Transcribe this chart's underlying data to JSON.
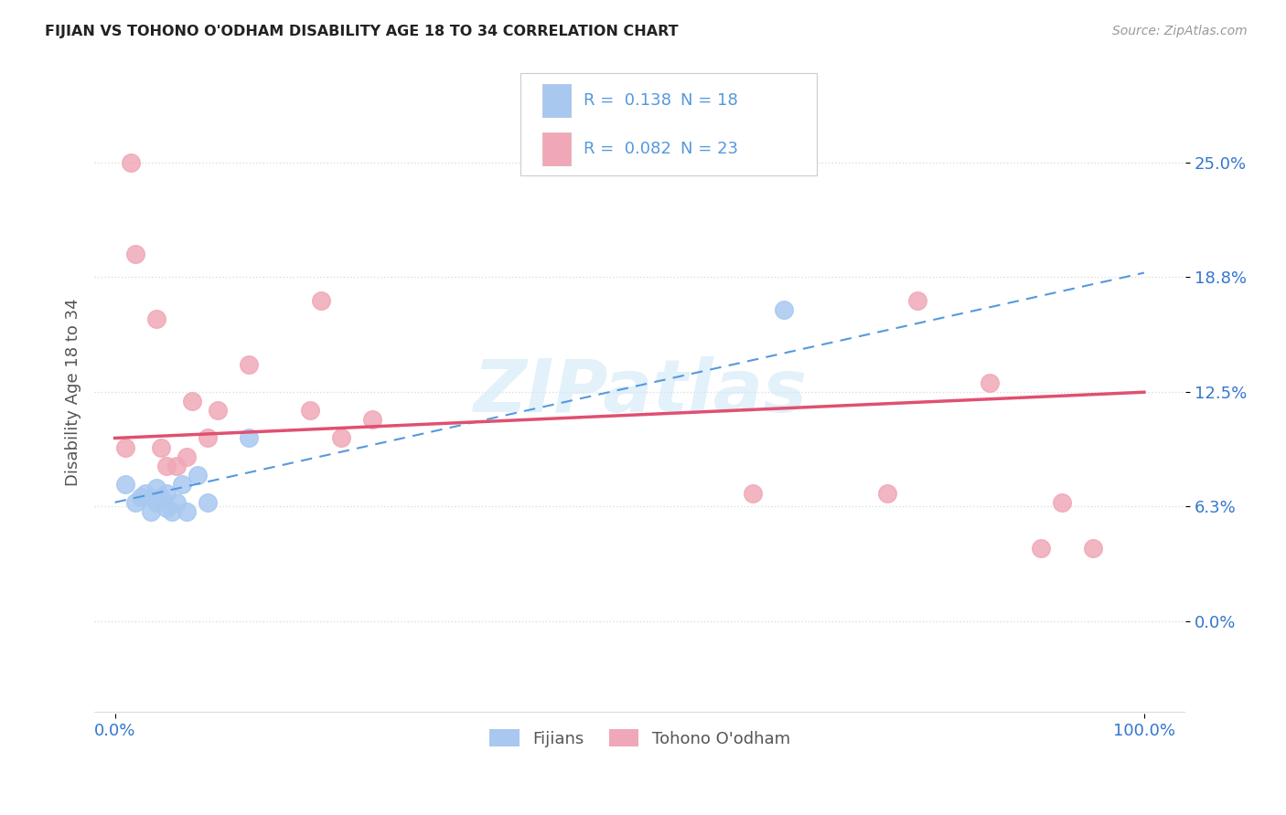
{
  "title": "FIJIAN VS TOHONO O'ODHAM DISABILITY AGE 18 TO 34 CORRELATION CHART",
  "source": "Source: ZipAtlas.com",
  "ylabel": "Disability Age 18 to 34",
  "xlabel": "",
  "xlim": [
    -0.02,
    1.04
  ],
  "ylim": [
    -0.05,
    0.3
  ],
  "yticks": [
    0.0,
    0.063,
    0.125,
    0.188,
    0.25
  ],
  "ytick_labels": [
    "0.0%",
    "6.3%",
    "12.5%",
    "18.8%",
    "25.0%"
  ],
  "xticks": [
    0.0,
    1.0
  ],
  "xtick_labels": [
    "0.0%",
    "100.0%"
  ],
  "fijian_R": 0.138,
  "fijian_N": 18,
  "tohono_R": 0.082,
  "tohono_N": 23,
  "fijian_color": "#a8c8f0",
  "tohono_color": "#f0a8b8",
  "fijian_line_color": "#5599dd",
  "tohono_line_color": "#e05070",
  "watermark_color": "#d0e8f8",
  "fijian_x": [
    0.01,
    0.02,
    0.025,
    0.03,
    0.035,
    0.04,
    0.04,
    0.045,
    0.05,
    0.05,
    0.055,
    0.06,
    0.065,
    0.07,
    0.08,
    0.09,
    0.13,
    0.65
  ],
  "fijian_y": [
    0.075,
    0.065,
    0.068,
    0.07,
    0.06,
    0.065,
    0.073,
    0.068,
    0.062,
    0.07,
    0.06,
    0.065,
    0.075,
    0.06,
    0.08,
    0.065,
    0.1,
    0.17
  ],
  "tohono_x": [
    0.01,
    0.015,
    0.02,
    0.04,
    0.045,
    0.05,
    0.06,
    0.07,
    0.075,
    0.09,
    0.1,
    0.13,
    0.19,
    0.2,
    0.22,
    0.25,
    0.62,
    0.75,
    0.78,
    0.85,
    0.9,
    0.92,
    0.95
  ],
  "tohono_y": [
    0.095,
    0.25,
    0.2,
    0.165,
    0.095,
    0.085,
    0.085,
    0.09,
    0.12,
    0.1,
    0.115,
    0.14,
    0.115,
    0.175,
    0.1,
    0.11,
    0.07,
    0.07,
    0.175,
    0.13,
    0.04,
    0.065,
    0.04
  ],
  "fijian_line_x0": 0.0,
  "fijian_line_y0": 0.065,
  "fijian_line_x1": 1.0,
  "fijian_line_y1": 0.19,
  "tohono_line_x0": 0.0,
  "tohono_line_y0": 0.1,
  "tohono_line_x1": 1.0,
  "tohono_line_y1": 0.125,
  "background_color": "#ffffff",
  "grid_color": "#dddddd",
  "title_color": "#222222",
  "axis_label_color": "#555555",
  "tick_label_color": "#3377cc",
  "legend_fijian_label": "Fijians",
  "legend_tohono_label": "Tohono O'odham"
}
